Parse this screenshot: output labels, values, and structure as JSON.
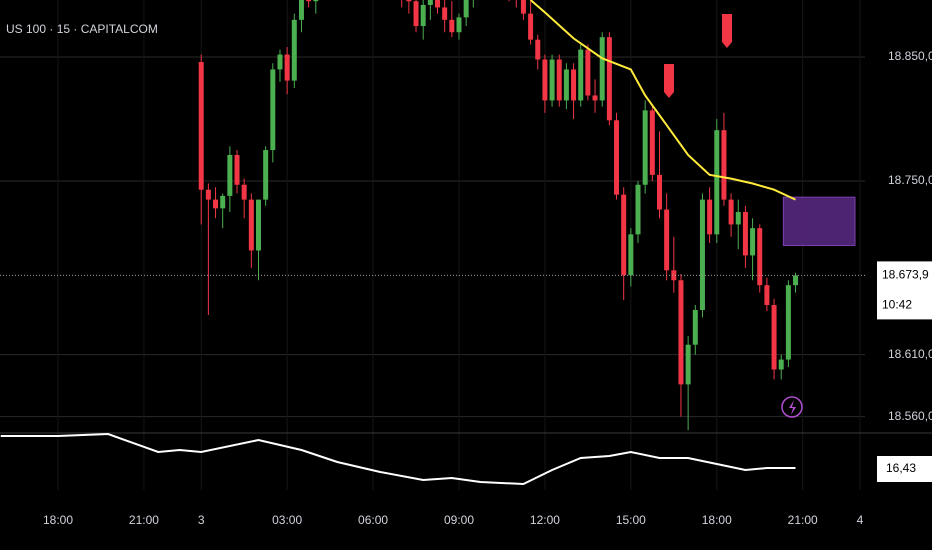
{
  "chart_data": {
    "type": "candlestick",
    "title": "US 100 · 15 · CAPITALCOM",
    "up_color": "#4caf50",
    "down_color": "#f23645",
    "grid": true,
    "xlim": [
      -8.1,
      112.7
    ],
    "xticks": [
      {
        "value": 0,
        "label": "18:00"
      },
      {
        "value": 12,
        "label": "21:00"
      },
      {
        "value": 20,
        "label": "3"
      },
      {
        "value": 32,
        "label": "03:00"
      },
      {
        "value": 44,
        "label": "06:00"
      },
      {
        "value": 56,
        "label": "09:00"
      },
      {
        "value": 68,
        "label": "12:00"
      },
      {
        "value": 80,
        "label": "15:00"
      },
      {
        "value": 92,
        "label": "18:00"
      },
      {
        "value": 104,
        "label": "21:00"
      },
      {
        "value": 112,
        "label": "4"
      }
    ],
    "ylim": [
      18547.6,
      18896
    ],
    "yticks": [
      {
        "value": 18850,
        "label": "18.850,0"
      },
      {
        "value": 18750,
        "label": "18.750,0"
      },
      {
        "value": 18610,
        "label": "18.610,0"
      },
      {
        "value": 18560,
        "label": "18.560,0"
      }
    ],
    "x": [
      20,
      21,
      22,
      23,
      24,
      25,
      26,
      27,
      28,
      29,
      30,
      31,
      32,
      33,
      34,
      35,
      36,
      37,
      38,
      39,
      40,
      41,
      42,
      43,
      44,
      45,
      46,
      47,
      48,
      49,
      50,
      51,
      52,
      53,
      54,
      55,
      56,
      57,
      58,
      59,
      60,
      61,
      62,
      63,
      64,
      65,
      66,
      67,
      68,
      69,
      70,
      71,
      72,
      73,
      74,
      75,
      76,
      77,
      78,
      79,
      80,
      81,
      82,
      83,
      84,
      85,
      86,
      87,
      88,
      89,
      90,
      91,
      92,
      93,
      94,
      95,
      96,
      97,
      98,
      99,
      100,
      101,
      102,
      103
    ],
    "open": [
      18846,
      18743,
      18735,
      18728,
      18738,
      18771,
      18747,
      18735,
      18694,
      18735,
      18775,
      18840,
      18852,
      18831,
      18880,
      18900,
      18895,
      18915,
      18925,
      18915,
      18925,
      18935,
      18930,
      18920,
      18930,
      18925,
      18910,
      18920,
      18905,
      18900,
      18895,
      18875,
      18892,
      18900,
      18890,
      18880,
      18870,
      18882,
      18900,
      18910,
      18918,
      18912,
      18920,
      18910,
      18905,
      18898,
      18885,
      18864,
      18848,
      18815,
      18848,
      18815,
      18840,
      18815,
      18856,
      18819,
      18815,
      18866,
      18799,
      18739,
      18674,
      18707,
      18747,
      18807,
      18755,
      18727,
      18678,
      18670,
      18586,
      18618,
      18646,
      18735,
      18707,
      18791,
      18735,
      18715,
      18725,
      18690,
      18712,
      18666,
      18650,
      18598,
      18606,
      18666
    ],
    "high": [
      18852,
      18748,
      18745,
      18740,
      18778,
      18775,
      18752,
      18740,
      18735,
      18778,
      18845,
      18856,
      18858,
      18885,
      18905,
      18915,
      18920,
      18930,
      18935,
      18930,
      18940,
      18945,
      18940,
      18935,
      18945,
      18935,
      18925,
      18930,
      18915,
      18910,
      18905,
      18900,
      18905,
      18910,
      18900,
      18895,
      18885,
      18905,
      18915,
      18925,
      18930,
      18925,
      18930,
      18920,
      18915,
      18905,
      18895,
      18868,
      18852,
      18852,
      18852,
      18845,
      18845,
      18860,
      18860,
      18832,
      18870,
      18870,
      18805,
      18745,
      18712,
      18750,
      18815,
      18812,
      18790,
      18740,
      18705,
      18675,
      18625,
      18650,
      18740,
      18745,
      18800,
      18805,
      18740,
      18735,
      18730,
      18720,
      18715,
      18672,
      18655,
      18610,
      18670,
      18676
    ],
    "low": [
      18715,
      18642,
      18720,
      18712,
      18725,
      18740,
      18720,
      18680,
      18670,
      18730,
      18765,
      18830,
      18820,
      18825,
      18870,
      18890,
      18885,
      18905,
      18910,
      18900,
      18915,
      18920,
      18915,
      18910,
      18920,
      18905,
      18900,
      18900,
      18890,
      18885,
      18870,
      18864,
      18880,
      18885,
      18870,
      18866,
      18864,
      18875,
      18890,
      18900,
      18905,
      18900,
      18905,
      18895,
      18890,
      18880,
      18860,
      18840,
      18805,
      18810,
      18810,
      18808,
      18800,
      18810,
      18815,
      18805,
      18810,
      18795,
      18735,
      18654,
      18665,
      18700,
      18740,
      18750,
      18720,
      18670,
      18660,
      18560,
      18549,
      18610,
      18640,
      18700,
      18700,
      18730,
      18705,
      18695,
      18680,
      18670,
      18660,
      18645,
      18590,
      18590,
      18600,
      18660
    ],
    "close": [
      18743,
      18735,
      18728,
      18738,
      18771,
      18747,
      18735,
      18694,
      18735,
      18775,
      18840,
      18852,
      18831,
      18880,
      18900,
      18895,
      18915,
      18925,
      18915,
      18925,
      18935,
      18930,
      18920,
      18930,
      18925,
      18910,
      18920,
      18905,
      18900,
      18895,
      18875,
      18892,
      18900,
      18890,
      18880,
      18870,
      18882,
      18900,
      18910,
      18918,
      18912,
      18920,
      18910,
      18905,
      18898,
      18885,
      18864,
      18848,
      18815,
      18848,
      18815,
      18840,
      18815,
      18856,
      18819,
      18815,
      18866,
      18799,
      18739,
      18674,
      18707,
      18747,
      18807,
      18755,
      18727,
      18678,
      18670,
      18586,
      18618,
      18646,
      18735,
      18707,
      18791,
      18735,
      18715,
      18725,
      18690,
      18712,
      18666,
      18650,
      18598,
      18606,
      18666,
      18673.9
    ],
    "last_label": "18.673,9",
    "countdown": "10:42",
    "ma": {
      "color": "#ffeb3b",
      "x": [
        66,
        68,
        72,
        76,
        80,
        82,
        85,
        88,
        91,
        94,
        97,
        100,
        103
      ],
      "values": [
        18896,
        18886,
        18865,
        18849,
        18840,
        18819,
        18795,
        18771,
        18755,
        18752,
        18748,
        18743,
        18735
      ]
    },
    "zone": {
      "color": "#5b2a86",
      "x": [
        101.3,
        111.3
      ],
      "values": [
        18737,
        18698
      ]
    },
    "indicator": {
      "color": "#ffffff",
      "ylim": [
        13.68,
        20.93
      ],
      "x": [
        -8,
        0,
        7,
        14,
        17,
        20,
        28,
        34,
        39,
        45,
        51,
        55,
        59,
        65,
        69,
        73,
        77,
        80,
        84,
        88,
        92,
        96,
        99,
        103
      ],
      "values": [
        20.43,
        20.43,
        20.68,
        18.43,
        18.68,
        18.43,
        19.93,
        18.68,
        17.18,
        15.93,
        14.93,
        15.18,
        14.68,
        14.43,
        16.18,
        17.68,
        17.93,
        18.43,
        17.68,
        17.68,
        16.93,
        16.18,
        16.43,
        16.43
      ],
      "last_label": "16,43"
    }
  }
}
